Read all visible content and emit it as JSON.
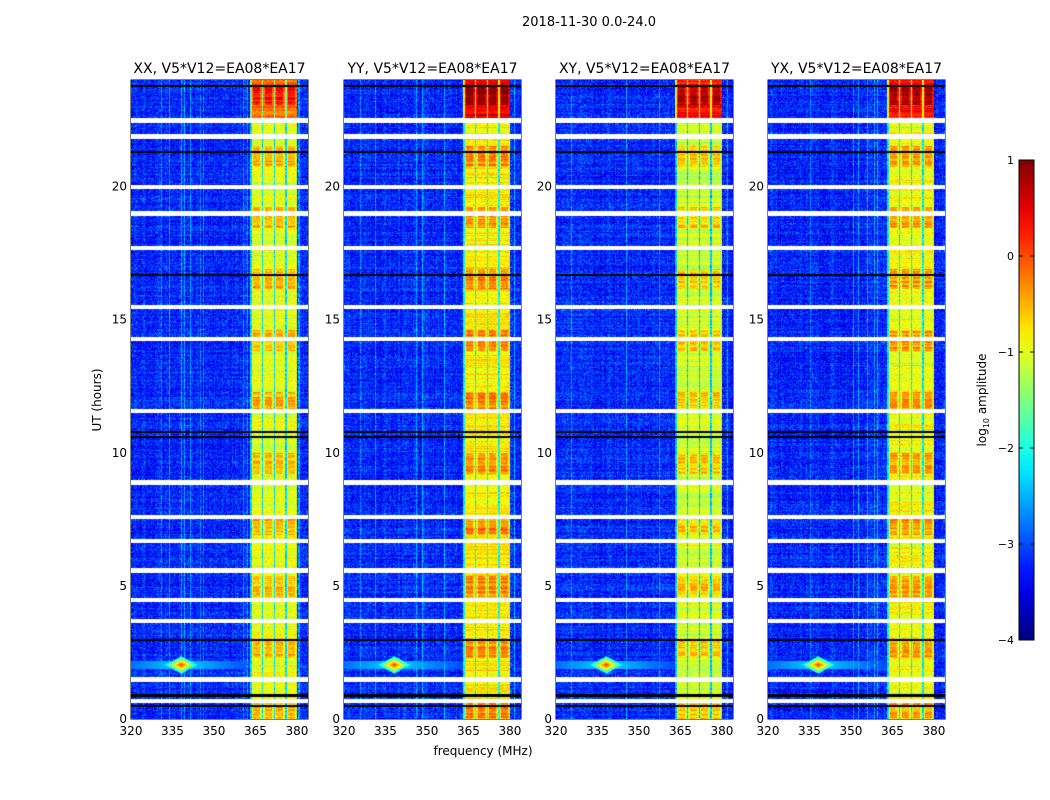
{
  "chart_data": {
    "type": "heatmap",
    "title": "2018-11-30 0.0-24.0",
    "xlabel": "frequency (MHz)",
    "ylabel": "UT (hours)",
    "xlim": [
      320,
      384
    ],
    "ylim": [
      0,
      24
    ],
    "xticks": [
      320,
      335,
      350,
      365,
      380
    ],
    "yticks": [
      0,
      5,
      10,
      15,
      20
    ],
    "panels": [
      {
        "title": "XX, V5*V12=EA08*EA17",
        "band_level": -1.0,
        "top_band_level": -0.2
      },
      {
        "title": "YY, V5*V12=EA08*EA17",
        "band_level": -0.8,
        "top_band_level": 0.5
      },
      {
        "title": "XY, V5*V12=EA08*EA17",
        "band_level": -1.1,
        "top_band_level": 0.3
      },
      {
        "title": "YX, V5*V12=EA08*EA17",
        "band_level": -0.9,
        "top_band_level": 0.3
      }
    ],
    "background_level": -3.2,
    "rfi_band_mhz": [
      363,
      380
    ],
    "rfi_spot": {
      "freq_mhz": 338,
      "ut_hours": 2.05,
      "level": 0.2
    },
    "flagged_rows_ut": [
      22.5,
      21.9,
      20.0,
      19.0,
      17.7,
      15.5,
      14.3,
      11.6,
      8.9,
      7.6,
      6.7,
      5.6,
      4.5,
      3.7,
      1.5,
      0.7
    ],
    "dark_rows_ut": [
      23.8,
      21.3,
      16.7,
      10.8,
      10.6,
      3.0,
      0.9,
      0.5
    ],
    "colorbar": {
      "label": "log10 amplitude",
      "label_main": "log",
      "label_sub": "10",
      "label_rest": " amplitude",
      "range": [
        -4,
        1
      ],
      "ticks": [
        1,
        0,
        -1,
        -2,
        -3,
        -4
      ],
      "colormap": "jet"
    }
  }
}
